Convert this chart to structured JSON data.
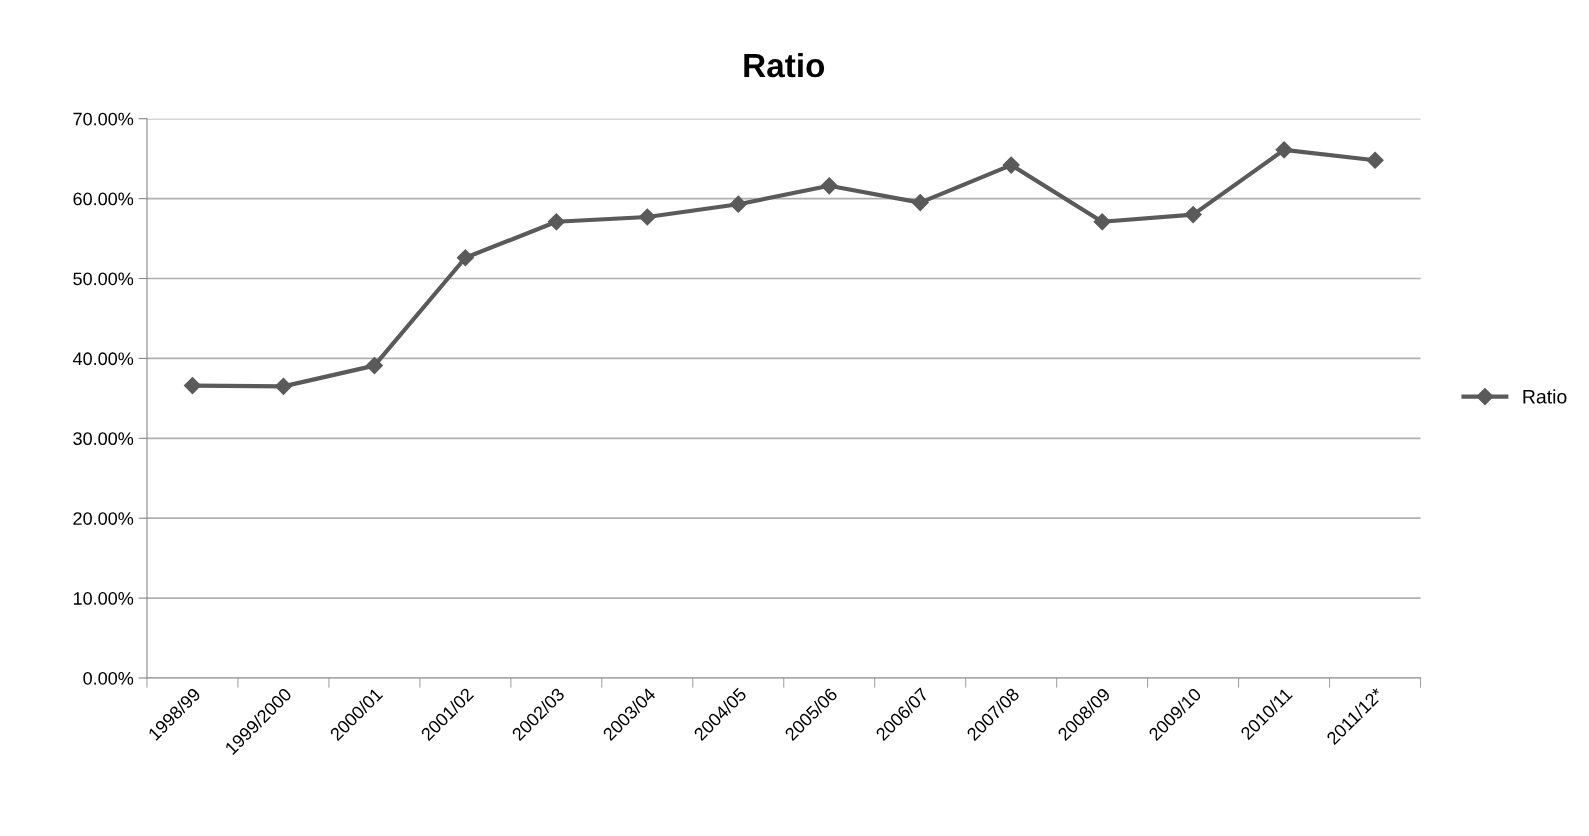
{
  "chart_data": {
    "type": "line",
    "title": "Ratio",
    "categories": [
      "1998/99",
      "1999/2000",
      "2000/01",
      "2001/02",
      "2002/03",
      "2003/04",
      "2004/05",
      "2005/06",
      "2006/07",
      "2007/08",
      "2008/09",
      "2009/10",
      "2010/11",
      "2011/12*"
    ],
    "series": [
      {
        "name": "Ratio",
        "color": "#5a5a5a",
        "values": [
          36.6,
          36.5,
          39.1,
          52.6,
          57.1,
          57.7,
          59.3,
          61.6,
          59.5,
          64.2,
          57.1,
          58.0,
          66.1,
          64.8
        ]
      }
    ],
    "ylim": [
      0,
      70
    ],
    "yticks": [
      {
        "value": 0,
        "label": "0.00%"
      },
      {
        "value": 10,
        "label": "10.00%"
      },
      {
        "value": 20,
        "label": "20.00%"
      },
      {
        "value": 30,
        "label": "30.00%"
      },
      {
        "value": 40,
        "label": "40.00%"
      },
      {
        "value": 50,
        "label": "50.00%"
      },
      {
        "value": 60,
        "label": "60.00%"
      },
      {
        "value": 70,
        "label": "70.00%"
      }
    ],
    "grid": "y",
    "legend": "right",
    "marker": "diamond",
    "line_style": "solid"
  }
}
